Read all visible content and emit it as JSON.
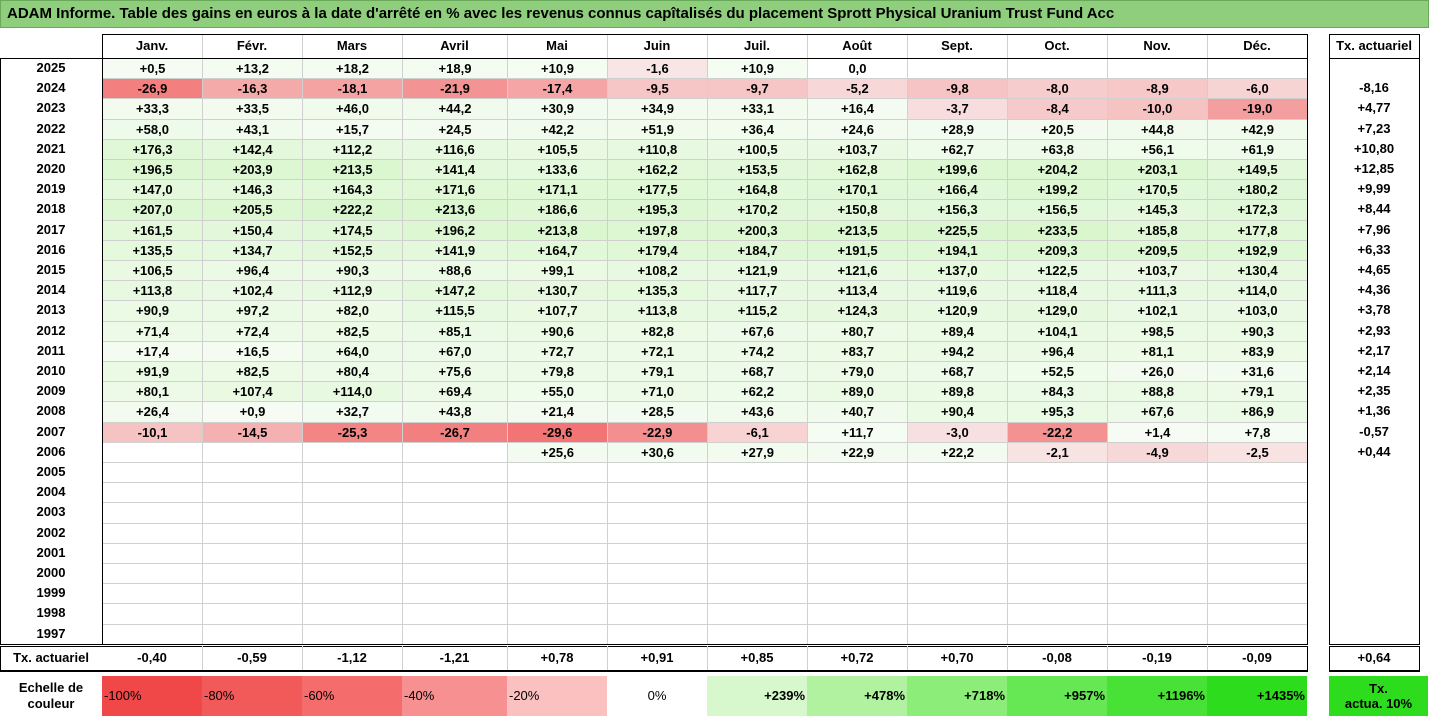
{
  "title": "ADAM Informe. Table des gains en euros à la date d'arrêté en % avec les revenus connus capîtalisés du placement Sprott Physical Uranium Trust Fund Acc",
  "months": [
    "Janv.",
    "Févr.",
    "Mars",
    "Avril",
    "Mai",
    "Juin",
    "Juil.",
    "Août",
    "Sept.",
    "Oct.",
    "Nov.",
    "Déc."
  ],
  "annual_header": "Tx. actuariel",
  "rows": [
    {
      "year": "2025",
      "vals": [
        "+0,5",
        "+13,2",
        "+18,2",
        "+18,9",
        "+10,9",
        "-1,6",
        "+10,9",
        "0,0",
        "",
        "",
        "",
        ""
      ],
      "annual": ""
    },
    {
      "year": "2024",
      "vals": [
        "-26,9",
        "-16,3",
        "-18,1",
        "-21,9",
        "-17,4",
        "-9,5",
        "-9,7",
        "-5,2",
        "-9,8",
        "-8,0",
        "-8,9",
        "-6,0"
      ],
      "annual": "-8,16"
    },
    {
      "year": "2023",
      "vals": [
        "+33,3",
        "+33,5",
        "+46,0",
        "+44,2",
        "+30,9",
        "+34,9",
        "+33,1",
        "+16,4",
        "-3,7",
        "-8,4",
        "-10,0",
        "-19,0"
      ],
      "annual": "+4,77"
    },
    {
      "year": "2022",
      "vals": [
        "+58,0",
        "+43,1",
        "+15,7",
        "+24,5",
        "+42,2",
        "+51,9",
        "+36,4",
        "+24,6",
        "+28,9",
        "+20,5",
        "+44,8",
        "+42,9"
      ],
      "annual": "+7,23"
    },
    {
      "year": "2021",
      "vals": [
        "+176,3",
        "+142,4",
        "+112,2",
        "+116,6",
        "+105,5",
        "+110,8",
        "+100,5",
        "+103,7",
        "+62,7",
        "+63,8",
        "+56,1",
        "+61,9"
      ],
      "annual": "+10,80"
    },
    {
      "year": "2020",
      "vals": [
        "+196,5",
        "+203,9",
        "+213,5",
        "+141,4",
        "+133,6",
        "+162,2",
        "+153,5",
        "+162,8",
        "+199,6",
        "+204,2",
        "+203,1",
        "+149,5"
      ],
      "annual": "+12,85"
    },
    {
      "year": "2019",
      "vals": [
        "+147,0",
        "+146,3",
        "+164,3",
        "+171,6",
        "+171,1",
        "+177,5",
        "+164,8",
        "+170,1",
        "+166,4",
        "+199,2",
        "+170,5",
        "+180,2"
      ],
      "annual": "+9,99"
    },
    {
      "year": "2018",
      "vals": [
        "+207,0",
        "+205,5",
        "+222,2",
        "+213,6",
        "+186,6",
        "+195,3",
        "+170,2",
        "+150,8",
        "+156,3",
        "+156,5",
        "+145,3",
        "+172,3"
      ],
      "annual": "+8,44"
    },
    {
      "year": "2017",
      "vals": [
        "+161,5",
        "+150,4",
        "+174,5",
        "+196,2",
        "+213,8",
        "+197,8",
        "+200,3",
        "+213,5",
        "+225,5",
        "+233,5",
        "+185,8",
        "+177,8"
      ],
      "annual": "+7,96"
    },
    {
      "year": "2016",
      "vals": [
        "+135,5",
        "+134,7",
        "+152,5",
        "+141,9",
        "+164,7",
        "+179,4",
        "+184,7",
        "+191,5",
        "+194,1",
        "+209,3",
        "+209,5",
        "+192,9"
      ],
      "annual": "+6,33"
    },
    {
      "year": "2015",
      "vals": [
        "+106,5",
        "+96,4",
        "+90,3",
        "+88,6",
        "+99,1",
        "+108,2",
        "+121,9",
        "+121,6",
        "+137,0",
        "+122,5",
        "+103,7",
        "+130,4"
      ],
      "annual": "+4,65"
    },
    {
      "year": "2014",
      "vals": [
        "+113,8",
        "+102,4",
        "+112,9",
        "+147,2",
        "+130,7",
        "+135,3",
        "+117,7",
        "+113,4",
        "+119,6",
        "+118,4",
        "+111,3",
        "+114,0"
      ],
      "annual": "+4,36"
    },
    {
      "year": "2013",
      "vals": [
        "+90,9",
        "+97,2",
        "+82,0",
        "+115,5",
        "+107,7",
        "+113,8",
        "+115,2",
        "+124,3",
        "+120,9",
        "+129,0",
        "+102,1",
        "+103,0"
      ],
      "annual": "+3,78"
    },
    {
      "year": "2012",
      "vals": [
        "+71,4",
        "+72,4",
        "+82,5",
        "+85,1",
        "+90,6",
        "+82,8",
        "+67,6",
        "+80,7",
        "+89,4",
        "+104,1",
        "+98,5",
        "+90,3"
      ],
      "annual": "+2,93"
    },
    {
      "year": "2011",
      "vals": [
        "+17,4",
        "+16,5",
        "+64,0",
        "+67,0",
        "+72,7",
        "+72,1",
        "+74,2",
        "+83,7",
        "+94,2",
        "+96,4",
        "+81,1",
        "+83,9"
      ],
      "annual": "+2,17"
    },
    {
      "year": "2010",
      "vals": [
        "+91,9",
        "+82,5",
        "+80,4",
        "+75,6",
        "+79,8",
        "+79,1",
        "+68,7",
        "+79,0",
        "+68,7",
        "+52,5",
        "+26,0",
        "+31,6"
      ],
      "annual": "+2,14"
    },
    {
      "year": "2009",
      "vals": [
        "+80,1",
        "+107,4",
        "+114,0",
        "+69,4",
        "+55,0",
        "+71,0",
        "+62,2",
        "+89,0",
        "+89,8",
        "+84,3",
        "+88,8",
        "+79,1"
      ],
      "annual": "+2,35"
    },
    {
      "year": "2008",
      "vals": [
        "+26,4",
        "+0,9",
        "+32,7",
        "+43,8",
        "+21,4",
        "+28,5",
        "+43,6",
        "+40,7",
        "+90,4",
        "+95,3",
        "+67,6",
        "+86,9"
      ],
      "annual": "+1,36"
    },
    {
      "year": "2007",
      "vals": [
        "-10,1",
        "-14,5",
        "-25,3",
        "-26,7",
        "-29,6",
        "-22,9",
        "-6,1",
        "+11,7",
        "-3,0",
        "-22,2",
        "+1,4",
        "+7,8"
      ],
      "annual": "-0,57"
    },
    {
      "year": "2006",
      "vals": [
        "",
        "",
        "",
        "",
        "+25,6",
        "+30,6",
        "+27,9",
        "+22,9",
        "+22,2",
        "-2,1",
        "-4,9",
        "-2,5"
      ],
      "annual": "+0,44"
    },
    {
      "year": "2005",
      "vals": [
        "",
        "",
        "",
        "",
        "",
        "",
        "",
        "",
        "",
        "",
        "",
        ""
      ],
      "annual": ""
    },
    {
      "year": "2004",
      "vals": [
        "",
        "",
        "",
        "",
        "",
        "",
        "",
        "",
        "",
        "",
        "",
        ""
      ],
      "annual": ""
    },
    {
      "year": "2003",
      "vals": [
        "",
        "",
        "",
        "",
        "",
        "",
        "",
        "",
        "",
        "",
        "",
        ""
      ],
      "annual": ""
    },
    {
      "year": "2002",
      "vals": [
        "",
        "",
        "",
        "",
        "",
        "",
        "",
        "",
        "",
        "",
        "",
        ""
      ],
      "annual": ""
    },
    {
      "year": "2001",
      "vals": [
        "",
        "",
        "",
        "",
        "",
        "",
        "",
        "",
        "",
        "",
        "",
        ""
      ],
      "annual": ""
    },
    {
      "year": "2000",
      "vals": [
        "",
        "",
        "",
        "",
        "",
        "",
        "",
        "",
        "",
        "",
        "",
        ""
      ],
      "annual": ""
    },
    {
      "year": "1999",
      "vals": [
        "",
        "",
        "",
        "",
        "",
        "",
        "",
        "",
        "",
        "",
        "",
        ""
      ],
      "annual": ""
    },
    {
      "year": "1998",
      "vals": [
        "",
        "",
        "",
        "",
        "",
        "",
        "",
        "",
        "",
        "",
        "",
        ""
      ],
      "annual": ""
    },
    {
      "year": "1997",
      "vals": [
        "",
        "",
        "",
        "",
        "",
        "",
        "",
        "",
        "",
        "",
        "",
        ""
      ],
      "annual": ""
    }
  ],
  "tx_row": {
    "label": "Tx. actuariel",
    "vals": [
      "-0,40",
      "-0,59",
      "-1,12",
      "-1,21",
      "+0,78",
      "+0,91",
      "+0,85",
      "+0,72",
      "+0,70",
      "-0,08",
      "-0,19",
      "-0,09"
    ],
    "annual": "+0,64"
  },
  "scale": {
    "label_line1": "Echelle de",
    "label_line2": "couleur",
    "items": [
      {
        "text": "-100%",
        "color": "#f04848",
        "align": "left"
      },
      {
        "text": "-80%",
        "color": "#f25a5a",
        "align": "left"
      },
      {
        "text": "-60%",
        "color": "#f46c6c",
        "align": "left"
      },
      {
        "text": "-40%",
        "color": "#f79090",
        "align": "left"
      },
      {
        "text": "-20%",
        "color": "#fbc0c0",
        "align": "left"
      },
      {
        "text": "0%",
        "color": "#ffffff",
        "align": "center"
      },
      {
        "text": "+239%",
        "color": "#d6f8cc",
        "align": "right"
      },
      {
        "text": "+478%",
        "color": "#b0f2a0",
        "align": "right"
      },
      {
        "text": "+718%",
        "color": "#8cee78",
        "align": "right"
      },
      {
        "text": "+957%",
        "color": "#66e854",
        "align": "right"
      },
      {
        "text": "+1196%",
        "color": "#48e236",
        "align": "right"
      },
      {
        "text": "+1435%",
        "color": "#2edc1e",
        "align": "right"
      }
    ],
    "tx_line1": "Tx.",
    "tx_line2": "actua. 10%",
    "tx_color": "#2edc1e"
  },
  "colors": {
    "title_bg": "#8fce7c",
    "pos_light": "#f1fbef",
    "pos_mid": "#e6f8e0",
    "pos_strong": "#d8f3cf"
  }
}
